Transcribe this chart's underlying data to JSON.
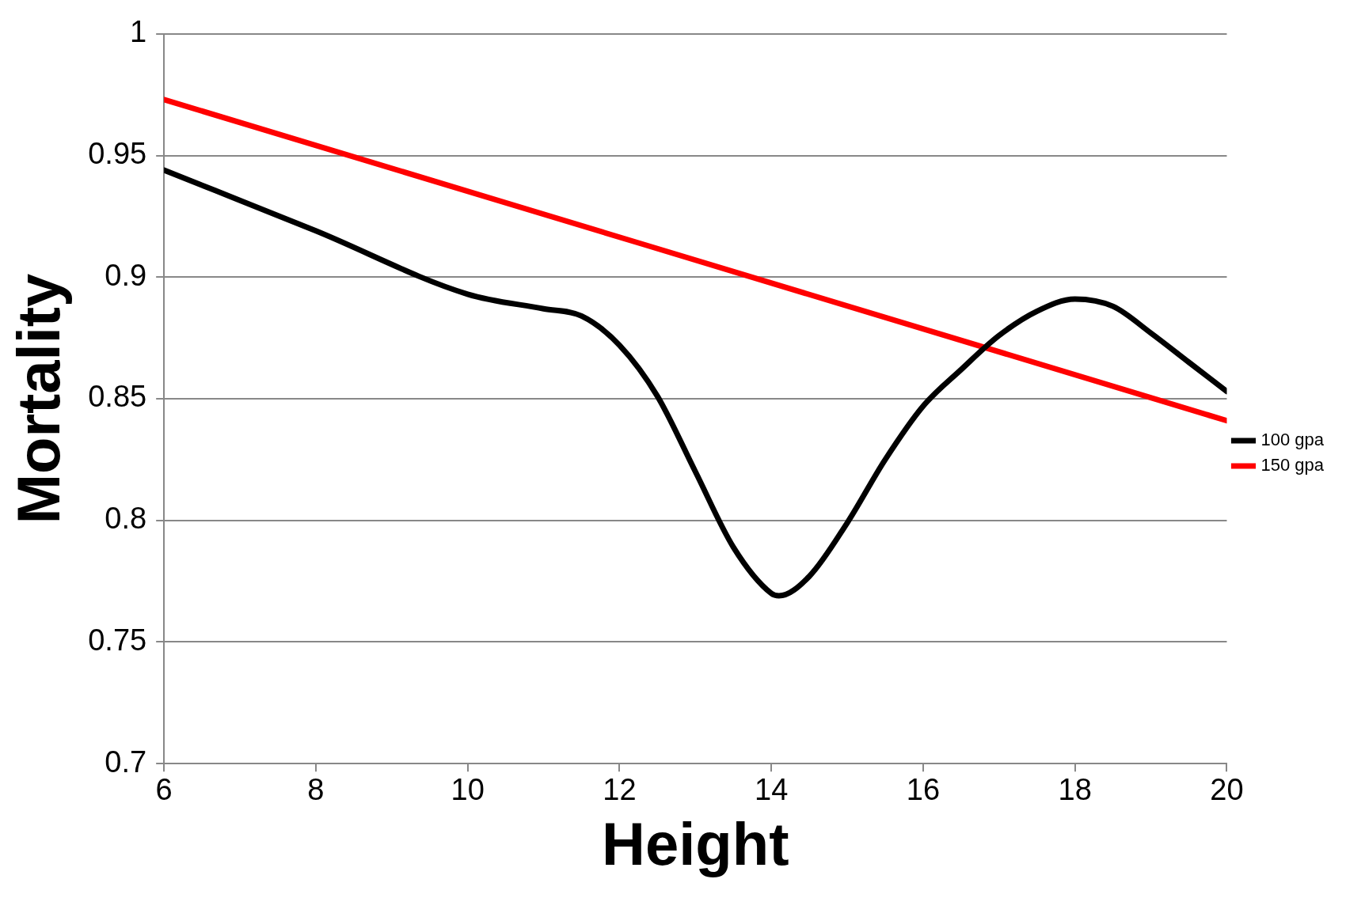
{
  "chart_data": {
    "type": "line",
    "xlabel": "Height",
    "ylabel": "Mortality",
    "xlim": [
      6,
      20
    ],
    "xticks": [
      6,
      8,
      10,
      12,
      14,
      16,
      18,
      20
    ],
    "ylim": [
      0.7,
      1
    ],
    "yticks": [
      0.7,
      0.75,
      0.8,
      0.85,
      0.9,
      0.95,
      1
    ],
    "grid": "y",
    "legend": "right",
    "marker": "none",
    "line_style": "solid",
    "series": [
      {
        "name": "100 gpa",
        "color": "#000000",
        "x": [
          6,
          8,
          10,
          11,
          11.5,
          12,
          12.5,
          13,
          13.5,
          14,
          14.1,
          14.5,
          15,
          15.5,
          16,
          16.5,
          17,
          17.5,
          18,
          18.5,
          19,
          19.5,
          20
        ],
        "values": [
          0.944,
          0.919,
          0.893,
          0.887,
          0.884,
          0.872,
          0.851,
          0.82,
          0.789,
          0.77,
          0.769,
          0.777,
          0.799,
          0.825,
          0.847,
          0.862,
          0.876,
          0.886,
          0.891,
          0.888,
          0.877,
          0.865,
          0.853
        ]
      },
      {
        "name": "150 gpa",
        "color": "#ff0000",
        "x": [
          6,
          20
        ],
        "values": [
          0.973,
          0.841
        ]
      }
    ]
  }
}
